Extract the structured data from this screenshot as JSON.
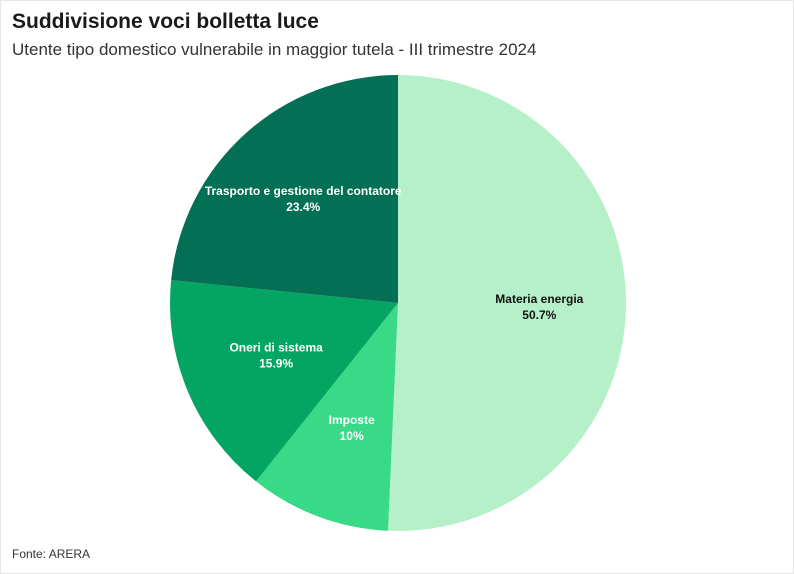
{
  "chart_data": {
    "type": "pie",
    "title": "Suddivisione voci bolletta luce",
    "subtitle": "Utente tipo domestico vulnerabile in maggior tutela - III trimestre 2024",
    "source": "Fonte: ARERA",
    "slices": [
      {
        "name": "Materia energia",
        "value": 50.7,
        "label": "50.7%",
        "color": "#b5f0c8",
        "text_color": "#111111"
      },
      {
        "name": "Imposte",
        "value": 10,
        "label": "10%",
        "color": "#38d987",
        "text_color": "#ffffff"
      },
      {
        "name": "Oneri di sistema",
        "value": 15.9,
        "label": "15.9%",
        "color": "#04a563",
        "text_color": "#ffffff"
      },
      {
        "name": "Trasporto e gestione del contatore",
        "value": 23.4,
        "label": "23.4%",
        "color": "#037055",
        "text_color": "#ffffff"
      }
    ]
  }
}
